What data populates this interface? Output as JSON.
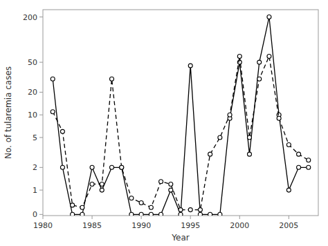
{
  "chart_data": {
    "type": "line",
    "x_label": "Year",
    "y_label": "No. of tularemia cases",
    "x": [
      1981,
      1982,
      1983,
      1984,
      1985,
      1986,
      1987,
      1988,
      1989,
      1990,
      1991,
      1992,
      1993,
      1994,
      1995,
      1996,
      1997,
      1998,
      1999,
      2000,
      2001,
      2002,
      2003,
      2004,
      2005,
      2006,
      2007
    ],
    "series": [
      {
        "color": "#000000",
        "line_style": "solid",
        "marker": "circle",
        "values": [
          30,
          2,
          0,
          0,
          2,
          1,
          2,
          2,
          0,
          0,
          0,
          0,
          1,
          0,
          45,
          0,
          0,
          0,
          9,
          50,
          3,
          50,
          200,
          10,
          1,
          2,
          2
        ]
      },
      {
        "color": "#000000",
        "line_style": "dashed",
        "marker": "circle",
        "values": [
          11,
          6,
          0.4,
          0.3,
          1.2,
          1.2,
          30,
          2,
          0.7,
          0.5,
          0.3,
          1.3,
          1.2,
          0.2,
          0.2,
          0.2,
          3,
          5,
          10,
          60,
          5,
          30,
          60,
          9,
          4,
          3,
          2.5
        ]
      }
    ],
    "xlim": [
      1980,
      2008
    ],
    "xticks": [
      1980,
      1985,
      1990,
      1995,
      2000,
      2005
    ],
    "ylim": [
      -0.05,
      250
    ],
    "yticks": [
      0,
      1,
      2,
      5,
      10,
      20,
      50,
      200
    ],
    "log": "y",
    "grid": false
  }
}
